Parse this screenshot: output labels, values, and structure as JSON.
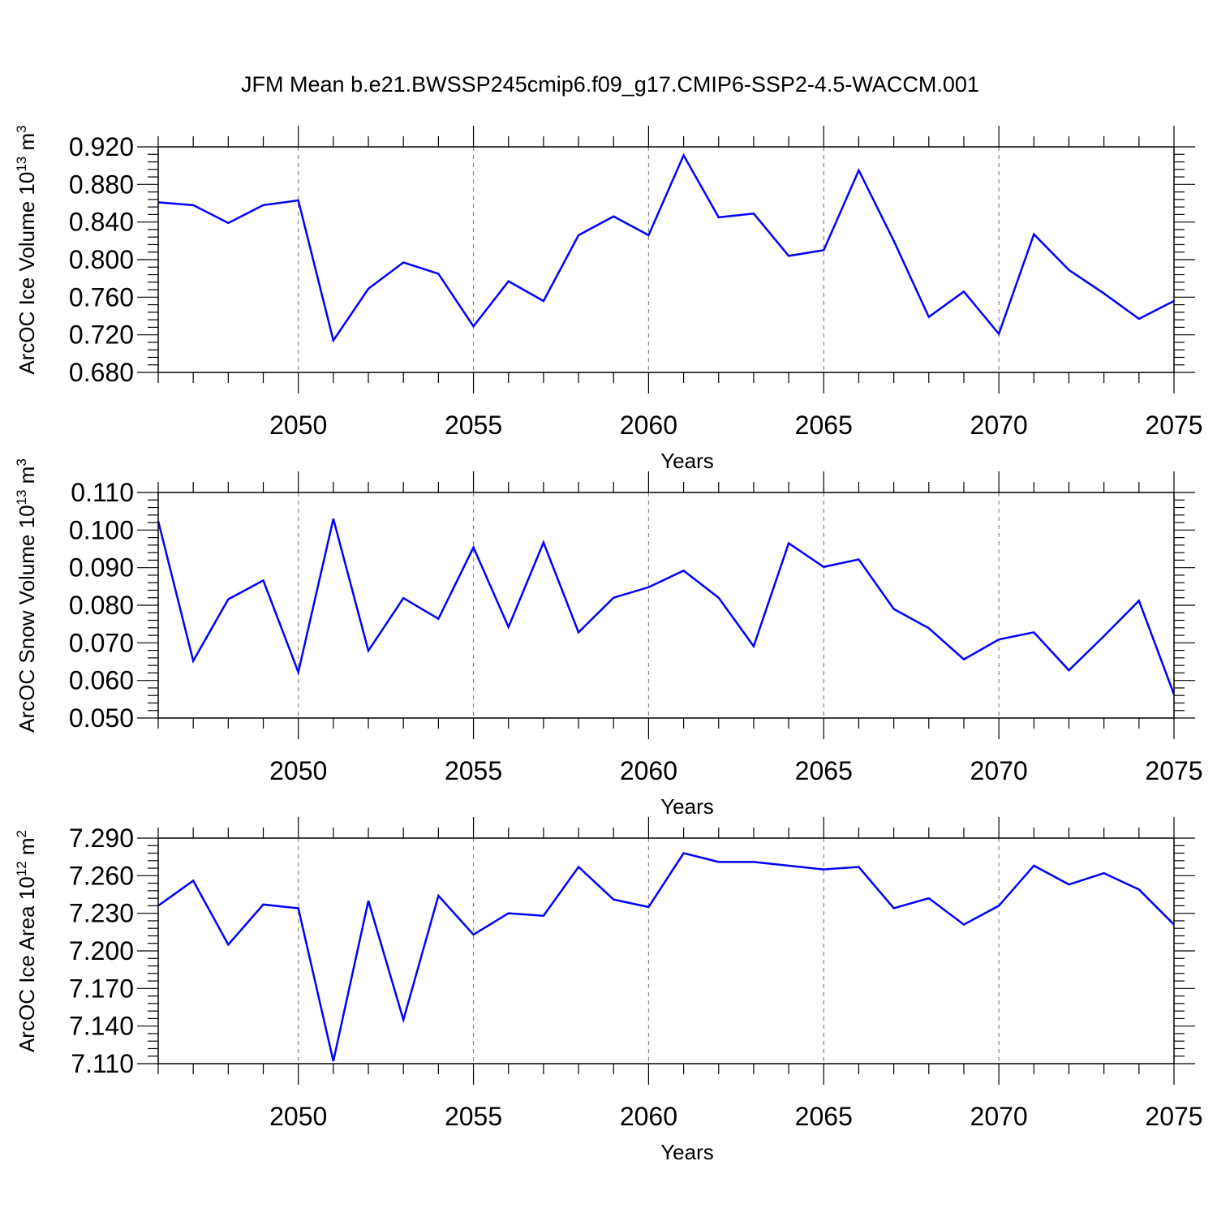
{
  "title": "JFM Mean b.e21.BWSSP245cmip6.f09_g17.CMIP6-SSP2-4.5-WACCM.001",
  "colors": {
    "line": "#0000ff",
    "axis": "#000000",
    "grid": "#888888",
    "background": "#ffffff"
  },
  "chart_data": [
    {
      "type": "line",
      "ylabel": "ArcOC Ice Volume",
      "ylabel_unit": {
        "base": "10",
        "exp": "13",
        "unit": "m",
        "unit_exp": "3"
      },
      "xlabel": "Years",
      "xlim": [
        2046,
        2075
      ],
      "ylim": [
        0.68,
        0.92
      ],
      "yticks": [
        0.68,
        0.72,
        0.76,
        0.8,
        0.84,
        0.88,
        0.92
      ],
      "ytick_labels": [
        "0.680",
        "0.720",
        "0.760",
        "0.800",
        "0.840",
        "0.880",
        "0.920"
      ],
      "xticks": [
        2050,
        2055,
        2060,
        2065,
        2070,
        2075
      ],
      "xtick_labels": [
        "2050",
        "2055",
        "2060",
        "2065",
        "2070",
        "2075"
      ],
      "vgrid": [
        2050,
        2055,
        2060,
        2065,
        2070
      ],
      "x": [
        2046,
        2047,
        2048,
        2049,
        2050,
        2051,
        2052,
        2053,
        2054,
        2055,
        2056,
        2057,
        2058,
        2059,
        2060,
        2061,
        2062,
        2063,
        2064,
        2065,
        2066,
        2067,
        2068,
        2069,
        2070,
        2071,
        2072,
        2073,
        2074,
        2075
      ],
      "values": [
        0.861,
        0.858,
        0.839,
        0.858,
        0.863,
        0.714,
        0.769,
        0.797,
        0.785,
        0.729,
        0.777,
        0.756,
        0.826,
        0.846,
        0.826,
        0.911,
        0.845,
        0.849,
        0.804,
        0.81,
        0.895,
        0.82,
        0.739,
        0.766,
        0.721,
        0.827,
        0.789,
        0.764,
        0.737,
        0.756
      ]
    },
    {
      "type": "line",
      "ylabel": "ArcOC Snow Volume",
      "ylabel_unit": {
        "base": "10",
        "exp": "13",
        "unit": "m",
        "unit_exp": "3"
      },
      "xlabel": "Years",
      "xlim": [
        2046,
        2075
      ],
      "ylim": [
        0.05,
        0.11
      ],
      "yticks": [
        0.05,
        0.06,
        0.07,
        0.08,
        0.09,
        0.1,
        0.11
      ],
      "ytick_labels": [
        "0.050",
        "0.060",
        "0.070",
        "0.080",
        "0.090",
        "0.100",
        "0.110"
      ],
      "xticks": [
        2050,
        2055,
        2060,
        2065,
        2070,
        2075
      ],
      "xtick_labels": [
        "2050",
        "2055",
        "2060",
        "2065",
        "2070",
        "2075"
      ],
      "vgrid": [
        2050,
        2055,
        2060,
        2065,
        2070
      ],
      "x": [
        2046,
        2047,
        2048,
        2049,
        2050,
        2051,
        2052,
        2053,
        2054,
        2055,
        2056,
        2057,
        2058,
        2059,
        2060,
        2061,
        2062,
        2063,
        2064,
        2065,
        2066,
        2067,
        2068,
        2069,
        2070,
        2071,
        2072,
        2073,
        2074,
        2075
      ],
      "values": [
        0.1024,
        0.0652,
        0.0816,
        0.0866,
        0.0622,
        0.103,
        0.0679,
        0.0819,
        0.0764,
        0.0954,
        0.0742,
        0.0967,
        0.0728,
        0.082,
        0.0848,
        0.0892,
        0.082,
        0.0691,
        0.0965,
        0.0902,
        0.0922,
        0.079,
        0.0739,
        0.0656,
        0.0709,
        0.0728,
        0.0627,
        0.0718,
        0.0812,
        0.0563
      ]
    },
    {
      "type": "line",
      "ylabel": "ArcOC Ice Area",
      "ylabel_unit": {
        "base": "10",
        "exp": "12",
        "unit": "m",
        "unit_exp": "2"
      },
      "xlabel": "Years",
      "xlim": [
        2046,
        2075
      ],
      "ylim": [
        7.11,
        7.29
      ],
      "yticks": [
        7.11,
        7.14,
        7.17,
        7.2,
        7.23,
        7.26,
        7.29
      ],
      "ytick_labels": [
        "7.110",
        "7.140",
        "7.170",
        "7.200",
        "7.230",
        "7.260",
        "7.290"
      ],
      "xticks": [
        2050,
        2055,
        2060,
        2065,
        2070,
        2075
      ],
      "xtick_labels": [
        "2050",
        "2055",
        "2060",
        "2065",
        "2070",
        "2075"
      ],
      "vgrid": [
        2050,
        2055,
        2060,
        2065,
        2070
      ],
      "x": [
        2046,
        2047,
        2048,
        2049,
        2050,
        2051,
        2052,
        2053,
        2054,
        2055,
        2056,
        2057,
        2058,
        2059,
        2060,
        2061,
        2062,
        2063,
        2064,
        2065,
        2066,
        2067,
        2068,
        2069,
        2070,
        2071,
        2072,
        2073,
        2074,
        2075
      ],
      "values": [
        7.236,
        7.256,
        7.205,
        7.237,
        7.234,
        7.112,
        7.24,
        7.145,
        7.244,
        7.213,
        7.23,
        7.228,
        7.267,
        7.241,
        7.235,
        7.278,
        7.271,
        7.271,
        7.268,
        7.265,
        7.267,
        7.234,
        7.242,
        7.221,
        7.236,
        7.268,
        7.253,
        7.262,
        7.249,
        7.221
      ]
    }
  ]
}
